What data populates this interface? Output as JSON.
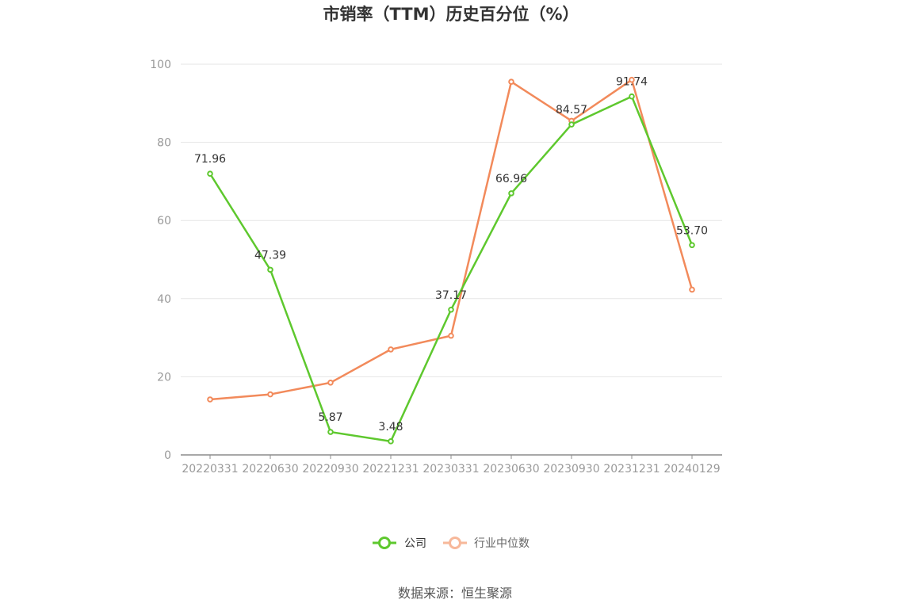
{
  "chart_data": {
    "type": "line",
    "title": "市销率（TTM）历史百分位（%）",
    "categories": [
      "20220331",
      "20220630",
      "20220930",
      "20221231",
      "20230331",
      "20230630",
      "20230930",
      "20231231",
      "20240129"
    ],
    "ylim": [
      0,
      100
    ],
    "yticks": [
      0,
      20,
      40,
      60,
      80,
      100
    ],
    "grid": true,
    "legend_position": "bottom-center",
    "series": [
      {
        "name": "公司",
        "color": "#5ec82e",
        "values": [
          71.96,
          47.39,
          5.87,
          3.48,
          37.17,
          66.96,
          84.57,
          91.74,
          53.7
        ],
        "labels": [
          "71.96",
          "47.39",
          "5.87",
          "3.48",
          "37.17",
          "66.96",
          "84.57",
          "91.74",
          "53.70"
        ]
      },
      {
        "name": "行业中位数",
        "color": "#f28a5b",
        "values": [
          14.2,
          15.5,
          18.5,
          27.0,
          30.5,
          95.5,
          85.5,
          96.0,
          42.3
        ]
      }
    ]
  },
  "legend_text_color": "#666666",
  "legend_inactive_marker_color": "#f7b89a",
  "source": "数据来源：恒生聚源"
}
